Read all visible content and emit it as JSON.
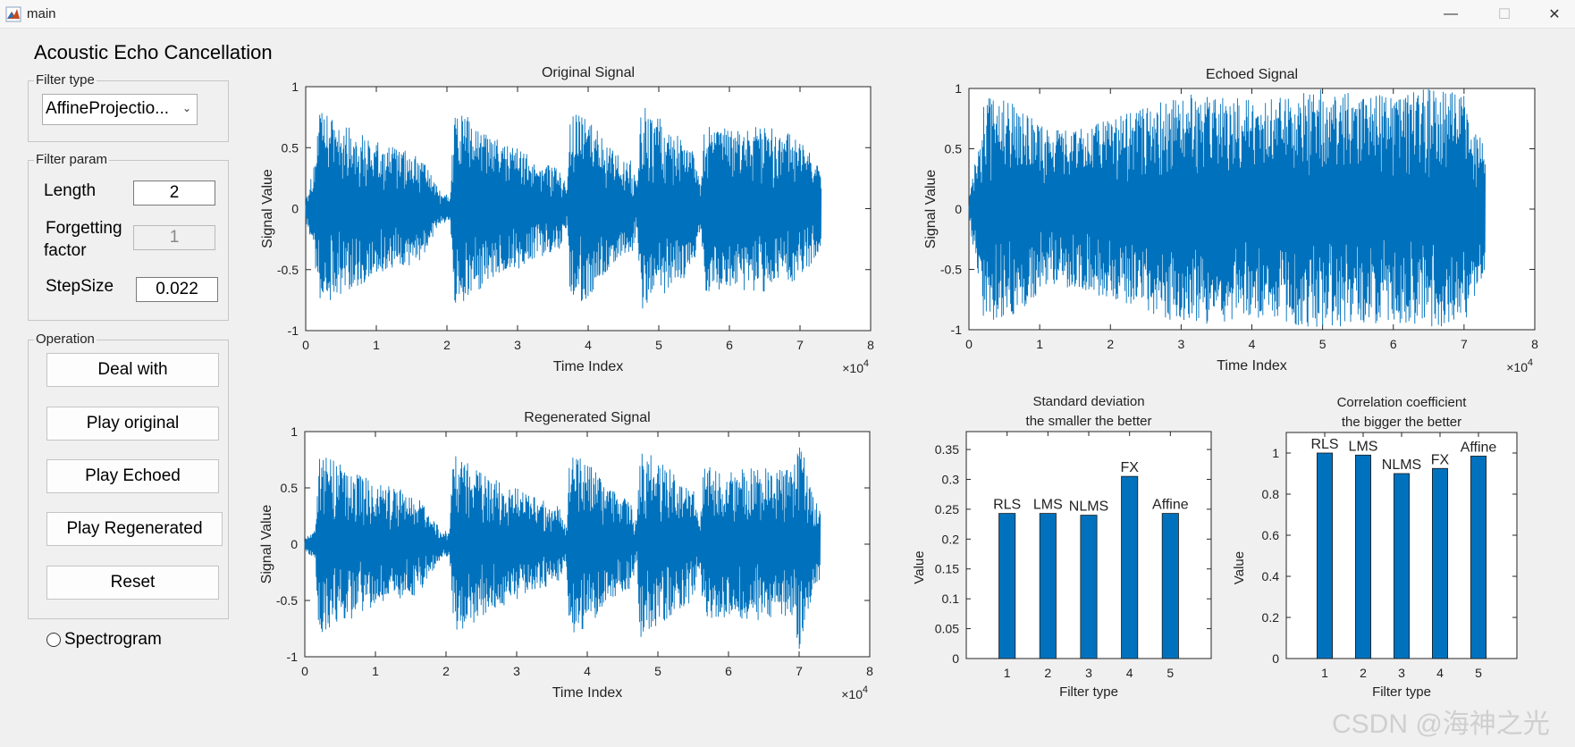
{
  "window": {
    "title": "main",
    "minimize_glyph": "—",
    "maximize_glyph": "☐",
    "close_glyph": "✕"
  },
  "app": {
    "heading": "Acoustic Echo Cancellation"
  },
  "filter_type_panel": {
    "legend": "Filter type",
    "selected": "AffineProjectio...",
    "chevron": "⌄"
  },
  "filter_param_panel": {
    "legend": "Filter param",
    "length_label": "Length",
    "length_value": "2",
    "forgetting_label_1": "Forgetting",
    "forgetting_label_2": "factor",
    "forgetting_value": "1",
    "stepsize_label": "StepSize",
    "stepsize_value": "0.022"
  },
  "operation_panel": {
    "legend": "Operation",
    "deal_with": "Deal with",
    "play_original": "Play original",
    "play_echoed": "Play Echoed",
    "play_regenerated": "Play Regenerated",
    "reset": "Reset"
  },
  "spectrogram": {
    "label": "Spectrogram",
    "checked": false
  },
  "watermark": "CSDN @海神之光",
  "colors": {
    "signal": "#0072bd",
    "bar": "#0072bd",
    "background": "#f0f0f0"
  },
  "chart_data": [
    {
      "id": "original",
      "type": "line",
      "title": "Original Signal",
      "xlabel": "Time Index",
      "ylabel": "Signal Value",
      "xlim": [
        0,
        8
      ],
      "ylim": [
        -1,
        1
      ],
      "x_exponent": "×10",
      "x_exponent_power": "4",
      "xticks": [
        "0",
        "1",
        "2",
        "3",
        "4",
        "5",
        "6",
        "7",
        "8"
      ],
      "yticks": [
        "1",
        "0.5",
        "0",
        "-0.5",
        "-1"
      ],
      "envelope": [
        [
          0.0,
          0.1
        ],
        [
          0.1,
          0.3
        ],
        [
          0.2,
          0.8
        ],
        [
          0.4,
          0.75
        ],
        [
          0.7,
          0.65
        ],
        [
          1.0,
          0.55
        ],
        [
          1.3,
          0.5
        ],
        [
          1.6,
          0.45
        ],
        [
          1.9,
          0.15
        ],
        [
          2.05,
          0.1
        ],
        [
          2.1,
          0.8
        ],
        [
          2.3,
          0.75
        ],
        [
          2.6,
          0.6
        ],
        [
          3.0,
          0.5
        ],
        [
          3.3,
          0.4
        ],
        [
          3.6,
          0.35
        ],
        [
          3.7,
          0.15
        ],
        [
          3.75,
          0.8
        ],
        [
          4.0,
          0.75
        ],
        [
          4.3,
          0.5
        ],
        [
          4.6,
          0.4
        ],
        [
          4.7,
          0.2
        ],
        [
          4.75,
          0.85
        ],
        [
          5.0,
          0.75
        ],
        [
          5.3,
          0.6
        ],
        [
          5.5,
          0.5
        ],
        [
          5.6,
          0.2
        ],
        [
          5.65,
          0.7
        ],
        [
          6.0,
          0.65
        ],
        [
          6.5,
          0.7
        ],
        [
          6.9,
          0.6
        ],
        [
          7.2,
          0.45
        ],
        [
          7.3,
          0.3
        ]
      ]
    },
    {
      "id": "echoed",
      "type": "line",
      "title": "Echoed Signal",
      "xlabel": "Time Index",
      "ylabel": "Signal Value",
      "xlim": [
        0,
        8
      ],
      "ylim": [
        -1,
        1
      ],
      "x_exponent": "×10",
      "x_exponent_power": "4",
      "xticks": [
        "0",
        "1",
        "2",
        "3",
        "4",
        "5",
        "6",
        "7",
        "8"
      ],
      "yticks": [
        "1",
        "0.5",
        "0",
        "-0.5",
        "-1"
      ],
      "envelope": [
        [
          0.0,
          0.1
        ],
        [
          0.1,
          0.45
        ],
        [
          0.2,
          0.9
        ],
        [
          0.4,
          0.95
        ],
        [
          0.7,
          0.85
        ],
        [
          1.0,
          0.7
        ],
        [
          1.5,
          0.65
        ],
        [
          2.0,
          0.75
        ],
        [
          2.5,
          0.85
        ],
        [
          3.0,
          0.95
        ],
        [
          3.5,
          0.95
        ],
        [
          4.0,
          0.9
        ],
        [
          4.5,
          0.95
        ],
        [
          5.0,
          1.0
        ],
        [
          5.5,
          0.95
        ],
        [
          6.0,
          0.95
        ],
        [
          6.5,
          1.0
        ],
        [
          7.0,
          0.95
        ],
        [
          7.3,
          0.5
        ]
      ]
    },
    {
      "id": "regenerated",
      "type": "line",
      "title": "Regenerated Signal",
      "xlabel": "Time Index",
      "ylabel": "Signal Value",
      "xlim": [
        0,
        8
      ],
      "ylim": [
        -1,
        1
      ],
      "x_exponent": "×10",
      "x_exponent_power": "4",
      "xticks": [
        "0",
        "1",
        "2",
        "3",
        "4",
        "5",
        "6",
        "7",
        "8"
      ],
      "yticks": [
        "1",
        "0.5",
        "0",
        "-0.5",
        "-1"
      ],
      "envelope": [
        [
          0.0,
          0.05
        ],
        [
          0.15,
          0.15
        ],
        [
          0.2,
          0.8
        ],
        [
          0.4,
          0.75
        ],
        [
          0.7,
          0.65
        ],
        [
          1.0,
          0.55
        ],
        [
          1.3,
          0.5
        ],
        [
          1.6,
          0.45
        ],
        [
          1.9,
          0.15
        ],
        [
          2.05,
          0.1
        ],
        [
          2.1,
          0.8
        ],
        [
          2.3,
          0.75
        ],
        [
          2.6,
          0.6
        ],
        [
          3.0,
          0.5
        ],
        [
          3.3,
          0.4
        ],
        [
          3.6,
          0.35
        ],
        [
          3.7,
          0.15
        ],
        [
          3.75,
          0.8
        ],
        [
          4.0,
          0.75
        ],
        [
          4.3,
          0.5
        ],
        [
          4.6,
          0.4
        ],
        [
          4.7,
          0.2
        ],
        [
          4.75,
          0.85
        ],
        [
          5.0,
          0.75
        ],
        [
          5.3,
          0.6
        ],
        [
          5.5,
          0.5
        ],
        [
          5.6,
          0.2
        ],
        [
          5.65,
          0.7
        ],
        [
          6.0,
          0.65
        ],
        [
          6.5,
          0.7
        ],
        [
          6.9,
          0.65
        ],
        [
          7.0,
          0.95
        ],
        [
          7.2,
          0.45
        ],
        [
          7.3,
          0.3
        ]
      ]
    },
    {
      "id": "stddev",
      "type": "bar",
      "title": "Standard deviation",
      "subtitle": "the smaller the better",
      "xlabel": "Filter type",
      "ylabel": "Value",
      "ylim": [
        0,
        0.38
      ],
      "categories": [
        "1",
        "2",
        "3",
        "4",
        "5"
      ],
      "values": [
        0.243,
        0.243,
        0.24,
        0.305,
        0.243
      ],
      "labels": [
        "RLS",
        "LMS",
        "NLMS",
        "FX",
        "Affine"
      ],
      "yticks": [
        0,
        0.05,
        0.1,
        0.15,
        0.2,
        0.25,
        0.3,
        0.35
      ],
      "ytick_labels": [
        "0",
        "0.05",
        "0.1",
        "0.15",
        "0.2",
        "0.25",
        "0.3",
        "0.35"
      ]
    },
    {
      "id": "corrcoef",
      "type": "bar",
      "title": "Correlation coefficient",
      "subtitle": "the bigger the better",
      "xlabel": "Filter type",
      "ylabel": "Value",
      "ylim": [
        0,
        1.1
      ],
      "categories": [
        "1",
        "2",
        "3",
        "4",
        "5"
      ],
      "values": [
        1.0,
        0.99,
        0.9,
        0.925,
        0.985
      ],
      "labels": [
        "RLS",
        "LMS",
        "NLMS",
        "FX",
        "Affine"
      ],
      "yticks": [
        0,
        0.2,
        0.4,
        0.6,
        0.8,
        1
      ],
      "ytick_labels": [
        "0",
        "0.2",
        "0.4",
        "0.6",
        "0.8",
        "1"
      ]
    }
  ]
}
